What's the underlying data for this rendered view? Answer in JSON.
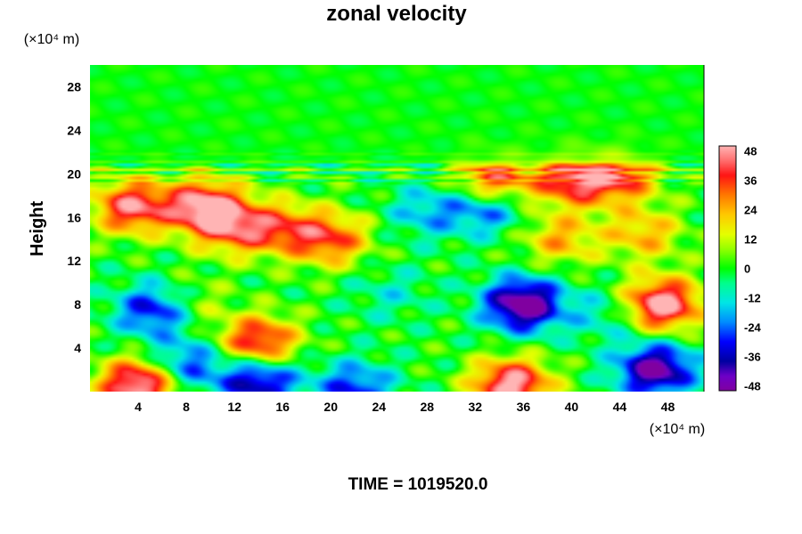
{
  "chart_data": {
    "type": "heatmap",
    "title": "zonal velocity",
    "ylabel": "Height",
    "x_unit": "(×10⁴ m)",
    "y_unit": "(×10⁴ m)",
    "xlim": [
      0,
      51
    ],
    "ylim": [
      0,
      30
    ],
    "xticks": [
      4,
      8,
      12,
      16,
      20,
      24,
      28,
      32,
      36,
      40,
      44,
      48
    ],
    "yticks": [
      4,
      8,
      12,
      16,
      20,
      24,
      28
    ],
    "colorbar": {
      "range": [
        -50,
        50
      ],
      "ticks": [
        48,
        36,
        24,
        12,
        0,
        -12,
        -24,
        -36,
        -48
      ]
    },
    "background_value": 0,
    "features": [
      {
        "kind": "pos",
        "x": 3.5,
        "y": 17,
        "value": 45
      },
      {
        "kind": "pos",
        "x": 9.5,
        "y": 17,
        "value": 50
      },
      {
        "kind": "pos",
        "x": 12,
        "y": 15,
        "value": 32
      },
      {
        "kind": "pos",
        "x": 16,
        "y": 15,
        "value": 28
      },
      {
        "kind": "pos",
        "x": 20,
        "y": 14,
        "value": 34
      },
      {
        "kind": "pos",
        "x": 14,
        "y": 4.5,
        "value": 45
      },
      {
        "kind": "pos",
        "x": 4,
        "y": 0.6,
        "value": 55
      },
      {
        "kind": "pos",
        "x": 35,
        "y": 0.6,
        "value": 52
      },
      {
        "kind": "pos",
        "x": 47.5,
        "y": 8,
        "value": 55
      },
      {
        "kind": "pos",
        "x": 33.5,
        "y": 19.3,
        "value": 42
      },
      {
        "kind": "pos",
        "x": 40,
        "y": 19.5,
        "value": 40
      },
      {
        "kind": "pos",
        "x": 44,
        "y": 19.8,
        "value": 36
      },
      {
        "kind": "pos",
        "x": 39,
        "y": 14,
        "value": 24
      },
      {
        "kind": "pos",
        "x": 46,
        "y": 14.5,
        "value": 24
      },
      {
        "kind": "pos",
        "x": 8,
        "y": 8,
        "value": 16
      },
      {
        "kind": "neg",
        "x": 5.5,
        "y": 7.5,
        "value": -38
      },
      {
        "kind": "neg",
        "x": 8,
        "y": 2.5,
        "value": -28
      },
      {
        "kind": "neg",
        "x": 14,
        "y": 1.0,
        "value": -42
      },
      {
        "kind": "neg",
        "x": 22,
        "y": 0.3,
        "value": -30
      },
      {
        "kind": "neg",
        "x": 36,
        "y": 8,
        "value": -55
      },
      {
        "kind": "neg",
        "x": 47,
        "y": 2.0,
        "value": -50
      },
      {
        "kind": "neg",
        "x": 33,
        "y": 17,
        "value": -30
      },
      {
        "kind": "neg",
        "x": 28,
        "y": 16.5,
        "value": -18
      },
      {
        "kind": "neg",
        "x": 25,
        "y": 9,
        "value": -10
      },
      {
        "kind": "neg",
        "x": 43,
        "y": 7,
        "value": -14
      }
    ]
  },
  "footer": {
    "time_label": "TIME = 1019520.0"
  }
}
